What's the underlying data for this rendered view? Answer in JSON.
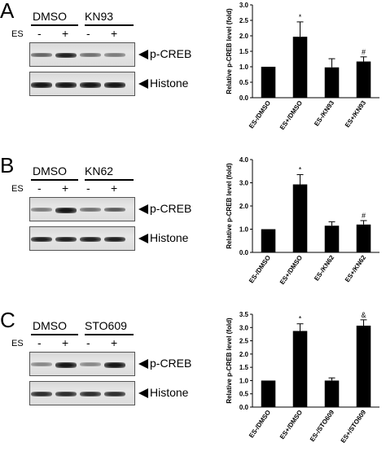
{
  "panels": [
    {
      "letter": "A",
      "treatment_right": "KN93",
      "row_labels": [
        "DMSO",
        "KN93"
      ],
      "es_label": "ES",
      "lane_signs": [
        "-",
        "+",
        "-",
        "+"
      ],
      "band_labels": [
        "p-CREB",
        "Histone"
      ],
      "pcreb_intensity": [
        0.55,
        0.85,
        0.5,
        0.45
      ],
      "histone_intensity": [
        0.9,
        0.9,
        0.9,
        0.9
      ],
      "chart_data": {
        "type": "bar",
        "categories": [
          "ES-/DMSO",
          "ES+/DMSO",
          "ES-/KN93",
          "ES+/KN93"
        ],
        "values": [
          1.0,
          1.97,
          0.98,
          1.17
        ],
        "errors": [
          0,
          0.48,
          0.28,
          0.15
        ],
        "annotations": [
          "",
          "*",
          "",
          "#"
        ],
        "ylabel": "Relative p-CREB level (fold)",
        "ylim": [
          0,
          3
        ],
        "yticks": [
          "0.0",
          "0.5",
          "1.0",
          "1.5",
          "2.0",
          "2.5",
          "3.0"
        ],
        "ytick_values": [
          0,
          0.5,
          1,
          1.5,
          2,
          2.5,
          3
        ]
      }
    },
    {
      "letter": "B",
      "treatment_right": "KN62",
      "row_labels": [
        "DMSO",
        "KN62"
      ],
      "es_label": "ES",
      "lane_signs": [
        "-",
        "+",
        "-",
        "+"
      ],
      "band_labels": [
        "p-CREB",
        "Histone"
      ],
      "pcreb_intensity": [
        0.45,
        0.9,
        0.5,
        0.6
      ],
      "histone_intensity": [
        0.85,
        0.85,
        0.85,
        0.85
      ],
      "chart_data": {
        "type": "bar",
        "categories": [
          "ES-/DMSO",
          "ES+/DMSO",
          "ES-/KN62",
          "ES+/KN62"
        ],
        "values": [
          1.0,
          2.93,
          1.15,
          1.2
        ],
        "errors": [
          0,
          0.42,
          0.17,
          0.17
        ],
        "annotations": [
          "",
          "*",
          "",
          "#"
        ],
        "ylabel": "Relative p-CREB level (fold)",
        "ylim": [
          0,
          4
        ],
        "yticks": [
          "0.0",
          "1.0",
          "2.0",
          "3.0",
          "4.0"
        ],
        "ytick_values": [
          0,
          1,
          2,
          3,
          4
        ]
      }
    },
    {
      "letter": "C",
      "treatment_right": "STO609",
      "row_labels": [
        "DMSO",
        "STO609"
      ],
      "es_label": "ES",
      "lane_signs": [
        "-",
        "+",
        "-",
        "+"
      ],
      "band_labels": [
        "p-CREB",
        "Histone"
      ],
      "pcreb_intensity": [
        0.4,
        0.9,
        0.4,
        0.9
      ],
      "histone_intensity": [
        0.8,
        0.8,
        0.8,
        0.8
      ],
      "chart_data": {
        "type": "bar",
        "categories": [
          "ES-/DMSO",
          "ES+/DMSO",
          "ES-/STO609",
          "ES+/STO609"
        ],
        "values": [
          1.0,
          2.87,
          1.0,
          3.07
        ],
        "errors": [
          0,
          0.27,
          0.1,
          0.22
        ],
        "annotations": [
          "",
          "*",
          "",
          "&"
        ],
        "ylabel": "Relative p-CREB level (fold)",
        "ylim": [
          0,
          3.5
        ],
        "yticks": [
          "0.0",
          "0.5",
          "1.0",
          "1.5",
          "2.0",
          "2.5",
          "3.0",
          "3.5"
        ],
        "ytick_values": [
          0,
          0.5,
          1,
          1.5,
          2,
          2.5,
          3,
          3.5
        ]
      }
    }
  ]
}
